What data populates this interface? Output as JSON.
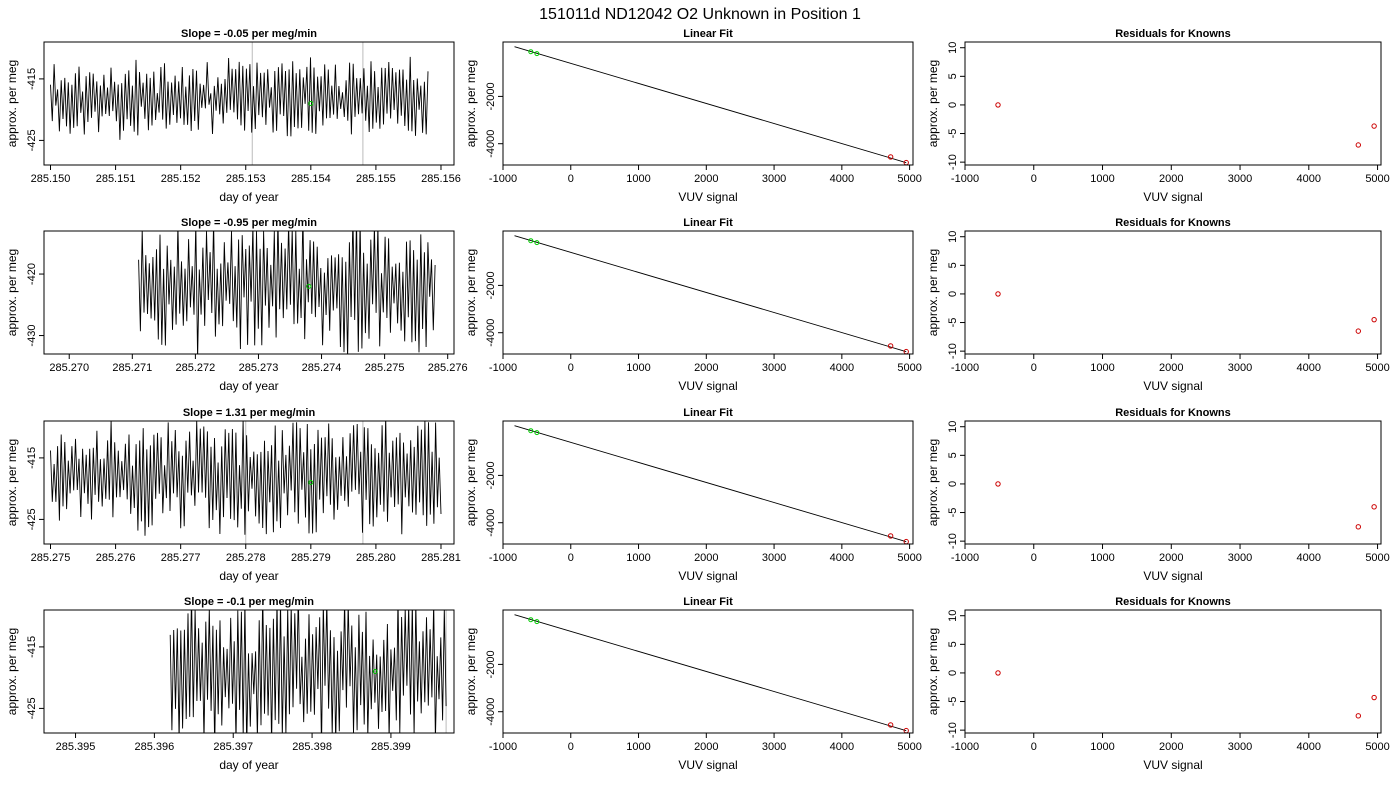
{
  "figure_title": "151011d     ND12042   O2 Unknown in Position  1",
  "colors": {
    "trace": "#000000",
    "green": "#00cc00",
    "red": "#cc0000",
    "vline": "#bbbbbb"
  },
  "chart_data": [
    {
      "type": "line",
      "title": "Slope =  -0.05  per meg/min",
      "xlabel": "day of year",
      "ylabel": "approx. per meg",
      "xlim": [
        285.1499,
        285.1562
      ],
      "ylim": [
        -429,
        -409
      ],
      "xticks": [
        "285.150",
        "285.151",
        "285.152",
        "285.153",
        "285.154",
        "285.155",
        "285.156"
      ],
      "xtick_values": [
        285.15,
        285.151,
        285.152,
        285.153,
        285.154,
        285.155,
        285.156
      ],
      "yticks": [
        "-415",
        "-425"
      ],
      "ytick_values": [
        -415,
        -425
      ],
      "x_start": 285.15,
      "x_end": 285.1558,
      "trace_center": -418,
      "trace_amp": 5.5,
      "trace_seed": 11,
      "marker": {
        "x": 285.154,
        "y": -419
      },
      "vlines": [
        285.1531,
        285.1548
      ]
    },
    {
      "type": "scatter",
      "title": "Linear Fit",
      "xlabel": "VUV signal",
      "ylabel": "approx. per meg",
      "xlim": [
        -1000,
        5050
      ],
      "ylim": [
        -4900,
        300
      ],
      "xticks": [
        "-1000",
        "0",
        "1000",
        "2000",
        "3000",
        "4000",
        "5000"
      ],
      "xtick_values": [
        -1000,
        0,
        1000,
        2000,
        3000,
        4000,
        5000
      ],
      "yticks": [
        "-2000",
        "-4000"
      ],
      "ytick_values": [
        -2000,
        -4000
      ],
      "fit_line": [
        [
          -830,
          100
        ],
        [
          4950,
          -4800
        ]
      ],
      "points": [
        {
          "x": 4720,
          "y": -4560
        },
        {
          "x": 4950,
          "y": -4800
        }
      ],
      "green_points": [
        {
          "x": -590,
          "y": -110
        },
        {
          "x": -500,
          "y": -190
        }
      ]
    },
    {
      "type": "scatter",
      "title": "Residuals for Knowns",
      "xlabel": "VUV signal",
      "ylabel": "approx. per meg",
      "xlim": [
        -1000,
        5050
      ],
      "ylim": [
        -10.5,
        11
      ],
      "xticks": [
        "-1000",
        "0",
        "1000",
        "2000",
        "3000",
        "4000",
        "5000"
      ],
      "xtick_values": [
        -1000,
        0,
        1000,
        2000,
        3000,
        4000,
        5000
      ],
      "yticks": [
        "10",
        "5",
        "0",
        "-5",
        "-10"
      ],
      "ytick_values": [
        10,
        5,
        0,
        -5,
        -10
      ],
      "points": [
        {
          "x": -520,
          "y": 0
        },
        {
          "x": 4720,
          "y": -7
        },
        {
          "x": 4950,
          "y": -3.7
        }
      ]
    },
    {
      "type": "line",
      "title": "Slope =  -0.95  per meg/min",
      "xlabel": "day of year",
      "ylabel": "approx. per meg",
      "xlim": [
        285.2696,
        285.2761
      ],
      "ylim": [
        -433,
        -413
      ],
      "xticks": [
        "285.270",
        "285.271",
        "285.272",
        "285.273",
        "285.274",
        "285.275",
        "285.276"
      ],
      "xtick_values": [
        285.27,
        285.271,
        285.272,
        285.273,
        285.274,
        285.275,
        285.276
      ],
      "yticks": [
        "-420",
        "-430"
      ],
      "ytick_values": [
        -420,
        -430
      ],
      "x_start": 285.2711,
      "x_end": 285.2758,
      "trace_center": -422,
      "trace_amp": 10,
      "trace_seed": 23,
      "marker": {
        "x": 285.2738,
        "y": -422
      },
      "vlines": []
    },
    {
      "type": "scatter",
      "title": "Linear Fit",
      "xlabel": "VUV signal",
      "ylabel": "approx. per meg",
      "xlim": [
        -1000,
        5050
      ],
      "ylim": [
        -4900,
        300
      ],
      "xticks": [
        "-1000",
        "0",
        "1000",
        "2000",
        "3000",
        "4000",
        "5000"
      ],
      "xtick_values": [
        -1000,
        0,
        1000,
        2000,
        3000,
        4000,
        5000
      ],
      "yticks": [
        "-2000",
        "-4000"
      ],
      "ytick_values": [
        -2000,
        -4000
      ],
      "fit_line": [
        [
          -830,
          100
        ],
        [
          4950,
          -4800
        ]
      ],
      "points": [
        {
          "x": 4720,
          "y": -4560
        },
        {
          "x": 4950,
          "y": -4800
        }
      ],
      "green_points": [
        {
          "x": -590,
          "y": -110
        },
        {
          "x": -500,
          "y": -190
        }
      ]
    },
    {
      "type": "scatter",
      "title": "Residuals for Knowns",
      "xlabel": "VUV signal",
      "ylabel": "approx. per meg",
      "xlim": [
        -1000,
        5050
      ],
      "ylim": [
        -10.5,
        11
      ],
      "xticks": [
        "-1000",
        "0",
        "1000",
        "2000",
        "3000",
        "4000",
        "5000"
      ],
      "xtick_values": [
        -1000,
        0,
        1000,
        2000,
        3000,
        4000,
        5000
      ],
      "yticks": [
        "10",
        "5",
        "0",
        "-5",
        "-10"
      ],
      "ytick_values": [
        10,
        5,
        0,
        -5,
        -10
      ],
      "points": [
        {
          "x": -520,
          "y": 0
        },
        {
          "x": 4720,
          "y": -6.5
        },
        {
          "x": 4950,
          "y": -4.5
        }
      ]
    },
    {
      "type": "line",
      "title": "Slope =  1.31  per meg/min",
      "xlabel": "day of year",
      "ylabel": "approx. per meg",
      "xlim": [
        285.2749,
        285.2812
      ],
      "ylim": [
        -429,
        -409
      ],
      "xticks": [
        "285.275",
        "285.276",
        "285.277",
        "285.278",
        "285.279",
        "285.280",
        "285.281"
      ],
      "xtick_values": [
        285.275,
        285.276,
        285.277,
        285.278,
        285.279,
        285.28,
        285.281
      ],
      "yticks": [
        "-415",
        "-425"
      ],
      "ytick_values": [
        -415,
        -425
      ],
      "x_start": 285.275,
      "x_end": 285.281,
      "trace_center": -418,
      "trace_amp": 8.5,
      "trace_seed": 37,
      "marker": {
        "x": 285.279,
        "y": -419
      },
      "vlines": [
        285.278,
        285.2798
      ]
    },
    {
      "type": "scatter",
      "title": "Linear Fit",
      "xlabel": "VUV signal",
      "ylabel": "approx. per meg",
      "xlim": [
        -1000,
        5050
      ],
      "ylim": [
        -4900,
        300
      ],
      "xticks": [
        "-1000",
        "0",
        "1000",
        "2000",
        "3000",
        "4000",
        "5000"
      ],
      "xtick_values": [
        -1000,
        0,
        1000,
        2000,
        3000,
        4000,
        5000
      ],
      "yticks": [
        "-2000",
        "-4000"
      ],
      "ytick_values": [
        -2000,
        -4000
      ],
      "fit_line": [
        [
          -830,
          100
        ],
        [
          4950,
          -4800
        ]
      ],
      "points": [
        {
          "x": 4720,
          "y": -4560
        },
        {
          "x": 4950,
          "y": -4800
        }
      ],
      "green_points": [
        {
          "x": -590,
          "y": -110
        },
        {
          "x": -500,
          "y": -190
        }
      ]
    },
    {
      "type": "scatter",
      "title": "Residuals for Knowns",
      "xlabel": "VUV signal",
      "ylabel": "approx. per meg",
      "xlim": [
        -1000,
        5050
      ],
      "ylim": [
        -10.5,
        11
      ],
      "xticks": [
        "-1000",
        "0",
        "1000",
        "2000",
        "3000",
        "4000",
        "5000"
      ],
      "xtick_values": [
        -1000,
        0,
        1000,
        2000,
        3000,
        4000,
        5000
      ],
      "yticks": [
        "10",
        "5",
        "0",
        "-5",
        "-10"
      ],
      "ytick_values": [
        10,
        5,
        0,
        -5,
        -10
      ],
      "points": [
        {
          "x": -520,
          "y": 0
        },
        {
          "x": 4720,
          "y": -7.5
        },
        {
          "x": 4950,
          "y": -4
        }
      ]
    },
    {
      "type": "line",
      "title": "Slope =  -0.1  per meg/min",
      "xlabel": "day of year",
      "ylabel": "approx. per meg",
      "xlim": [
        285.3946,
        285.3998
      ],
      "ylim": [
        -429,
        -409
      ],
      "xticks": [
        "285.395",
        "285.396",
        "285.397",
        "285.398",
        "285.399"
      ],
      "xtick_values": [
        285.395,
        285.396,
        285.397,
        285.398,
        285.399
      ],
      "yticks": [
        "-415",
        "-425"
      ],
      "ytick_values": [
        -415,
        -425
      ],
      "x_start": 285.3962,
      "x_end": 285.3997,
      "trace_center": -419,
      "trace_amp": 11,
      "trace_seed": 51,
      "marker": {
        "x": 285.3988,
        "y": -419
      },
      "vlines": [
        285.3997
      ]
    },
    {
      "type": "scatter",
      "title": "Linear Fit",
      "xlabel": "VUV signal",
      "ylabel": "approx. per meg",
      "xlim": [
        -1000,
        5050
      ],
      "ylim": [
        -4900,
        300
      ],
      "xticks": [
        "-1000",
        "0",
        "1000",
        "2000",
        "3000",
        "4000",
        "5000"
      ],
      "xtick_values": [
        -1000,
        0,
        1000,
        2000,
        3000,
        4000,
        5000
      ],
      "yticks": [
        "-2000",
        "-4000"
      ],
      "ytick_values": [
        -2000,
        -4000
      ],
      "fit_line": [
        [
          -830,
          100
        ],
        [
          4950,
          -4800
        ]
      ],
      "points": [
        {
          "x": 4720,
          "y": -4560
        },
        {
          "x": 4950,
          "y": -4800
        }
      ],
      "green_points": [
        {
          "x": -590,
          "y": -110
        },
        {
          "x": -500,
          "y": -190
        }
      ]
    },
    {
      "type": "scatter",
      "title": "Residuals for Knowns",
      "xlabel": "VUV signal",
      "ylabel": "approx. per meg",
      "xlim": [
        -1000,
        5050
      ],
      "ylim": [
        -10.5,
        11
      ],
      "xticks": [
        "-1000",
        "0",
        "1000",
        "2000",
        "3000",
        "4000",
        "5000"
      ],
      "xtick_values": [
        -1000,
        0,
        1000,
        2000,
        3000,
        4000,
        5000
      ],
      "yticks": [
        "10",
        "5",
        "0",
        "-5",
        "-10"
      ],
      "ytick_values": [
        10,
        5,
        0,
        -5,
        -10
      ],
      "points": [
        {
          "x": -520,
          "y": 0
        },
        {
          "x": 4720,
          "y": -7.5
        },
        {
          "x": 4950,
          "y": -4.3
        }
      ]
    }
  ]
}
